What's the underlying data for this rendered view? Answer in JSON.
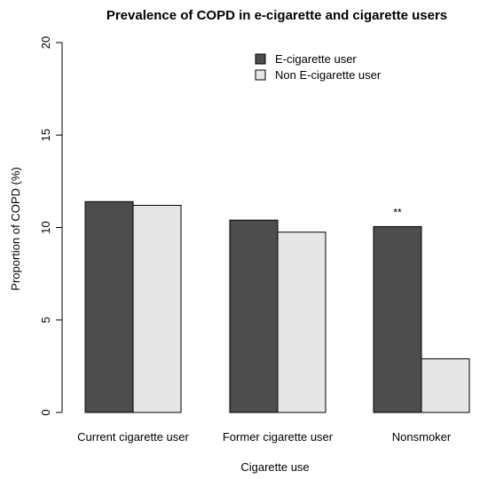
{
  "chart_data": {
    "type": "bar",
    "title": "Prevalence of COPD in e-cigarette and cigarette users",
    "xlabel": "Cigarette use",
    "ylabel": "Proportion of COPD (%)",
    "ylim": [
      0,
      20
    ],
    "yticks": [
      0,
      5,
      10,
      15,
      20
    ],
    "categories": [
      "Current cigarette user",
      "Former cigarette user",
      "Nonsmoker"
    ],
    "series": [
      {
        "name": "E-cigarette user",
        "color": "#4d4d4d",
        "values": [
          11.4,
          10.4,
          10.05
        ]
      },
      {
        "name": "Non E-cigarette user",
        "color": "#e6e6e6",
        "values": [
          11.2,
          9.75,
          2.9
        ]
      }
    ],
    "annotations": [
      {
        "category": "Nonsmoker",
        "series": "E-cigarette user",
        "text": "**"
      }
    ],
    "legend": "top-right",
    "grid": false
  }
}
